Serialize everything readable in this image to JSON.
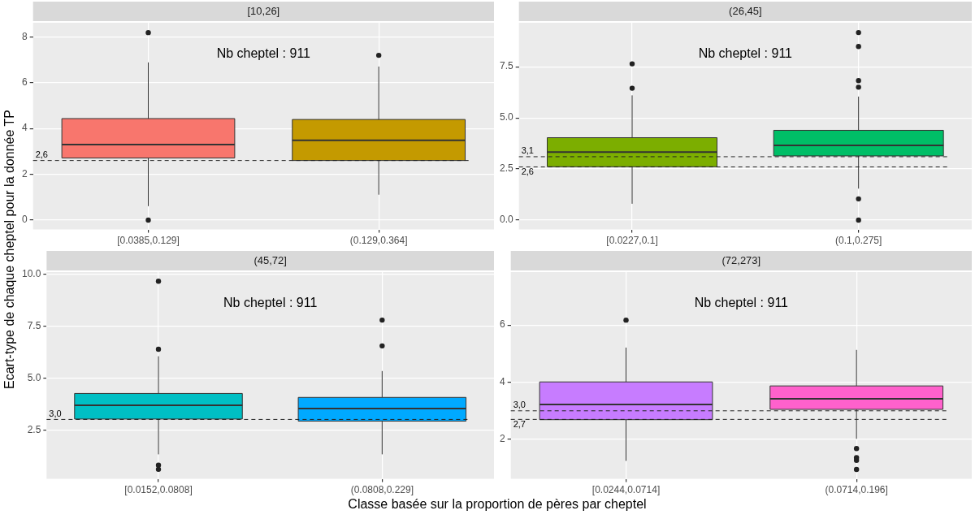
{
  "chart_data": [
    {
      "type": "box",
      "title": "[10,26]",
      "ylabel": "Ecart-type de chaque cheptel pour la donnée TP",
      "categories": [
        "[0.0385,0.129]",
        "(0.129,0.364]"
      ],
      "colors": [
        "#f8766d",
        "#c49a00"
      ],
      "boxes": [
        {
          "low": 0.61,
          "q1": 2.71,
          "median": 3.3,
          "q3": 4.43,
          "high": 6.88,
          "outliers": [
            8.18,
            0
          ]
        },
        {
          "low": 1.11,
          "q1": 2.6,
          "median": 3.48,
          "q3": 4.39,
          "high": 6.7,
          "outliers": [
            7.19
          ]
        }
      ],
      "ylim": [
        -0.41,
        8.61
      ],
      "yticks": [
        0,
        2,
        4,
        6,
        8
      ],
      "grid": true,
      "line_style": "dashed",
      "ref_lines": [
        {
          "axis": "y",
          "value": 2.6,
          "label": "2,6"
        }
      ],
      "annotations": [
        "Nb cheptel : 911"
      ]
    },
    {
      "type": "box",
      "title": "(26,45]",
      "categories": [
        "[0.0227,0.1]",
        "(0.1,0.275]"
      ],
      "colors": [
        "#7cae00",
        "#00be67"
      ],
      "boxes": [
        {
          "low": 0.8,
          "q1": 2.61,
          "median": 3.33,
          "q3": 4.03,
          "high": 6.1,
          "outliers": [
            7.64,
            6.45
          ]
        },
        {
          "low": 1.54,
          "q1": 3.14,
          "median": 3.65,
          "q3": 4.39,
          "high": 6.04,
          "outliers": [
            9.17,
            8.49,
            6.82,
            6.5,
            1.04,
            0
          ]
        }
      ],
      "ylim": [
        -0.46,
        9.65
      ],
      "yticks": [
        {
          "value": 0,
          "label": "0.0"
        },
        {
          "value": 2.5,
          "label": "2.5"
        },
        {
          "value": 5,
          "label": "5.0"
        },
        {
          "value": 7.5,
          "label": "7.5"
        }
      ],
      "grid": true,
      "line_style": "dashed",
      "ref_lines": [
        {
          "axis": "y",
          "value": 3.1,
          "label": "3,1"
        },
        {
          "axis": "y",
          "value": 2.6,
          "label": "2,6"
        }
      ],
      "annotations": [
        "Nb cheptel : 911"
      ]
    },
    {
      "type": "box",
      "title": "(45,72]",
      "xlabel": "Classe basée sur la proportion de pères par cheptel",
      "categories": [
        "[0.0152,0.0808]",
        "(0.0808,0.229]"
      ],
      "colors": [
        "#00bfc4",
        "#00a9ff"
      ],
      "boxes": [
        {
          "low": 1.32,
          "q1": 3.02,
          "median": 3.68,
          "q3": 4.25,
          "high": 6.04,
          "outliers": [
            9.65,
            6.38,
            0.8,
            0.6
          ]
        },
        {
          "low": 1.32,
          "q1": 2.92,
          "median": 3.52,
          "q3": 4.06,
          "high": 5.33,
          "outliers": [
            7.78,
            6.54
          ]
        }
      ],
      "ylim": [
        0.14,
        10.09
      ],
      "yticks": [
        {
          "value": 2.5,
          "label": "2.5"
        },
        {
          "value": 5,
          "label": "5.0"
        },
        {
          "value": 7.5,
          "label": "7.5"
        },
        {
          "value": 10,
          "label": "10.0"
        }
      ],
      "grid": true,
      "line_style": "dashed",
      "ref_lines": [
        {
          "axis": "y",
          "value": 3.0,
          "label": "3,0"
        }
      ],
      "annotations": [
        "Nb cheptel : 911"
      ]
    },
    {
      "type": "box",
      "title": "(72,273]",
      "categories": [
        "[0.0244,0.0714]",
        "(0.0714,0.196]"
      ],
      "colors": [
        "#c77cff",
        "#ff61cc"
      ],
      "boxes": [
        {
          "low": 1.25,
          "q1": 2.69,
          "median": 3.22,
          "q3": 4.01,
          "high": 5.21,
          "outliers": [
            6.17
          ]
        },
        {
          "low": 2.02,
          "q1": 3.05,
          "median": 3.42,
          "q3": 3.87,
          "high": 5.13,
          "outliers": [
            1.68,
            1.36,
            1.27,
            0.95
          ]
        }
      ],
      "ylim": [
        0.62,
        7.85
      ],
      "yticks": [
        2,
        4,
        6
      ],
      "grid": true,
      "line_style": "dashed",
      "ref_lines": [
        {
          "axis": "y",
          "value": 3.0,
          "label": "3,0"
        },
        {
          "axis": "y",
          "value": 2.7,
          "label": "2,7"
        }
      ],
      "annotations": [
        "Nb cheptel : 911"
      ]
    }
  ]
}
